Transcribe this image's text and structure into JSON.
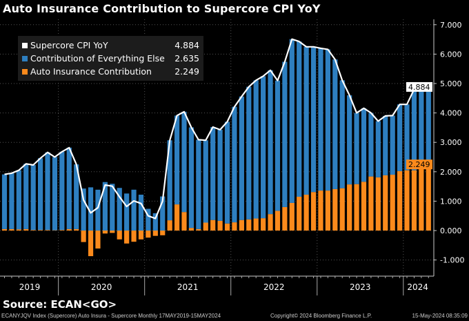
{
  "title": "Auto Insurance Contribution to Supercore CPI YoY",
  "legend": [
    {
      "name": "Supercore CPI YoY",
      "value": "4.884",
      "color": "#ffffff"
    },
    {
      "name": "Contribution of Everything Else",
      "value": "2.635",
      "color": "#2e7fc0"
    },
    {
      "name": "Auto Insurance Contribution",
      "value": "2.249",
      "color": "#fb8a1c"
    }
  ],
  "source": "Source: ECAN<GO>",
  "footer": {
    "left": "ECANYJQV Index (Supercore) Auto Insura - Supercore  Monthly 17MAY2019-15MAY2024",
    "center": "Copyright© 2024 Bloomberg Finance L.P.",
    "right": "15-May-2024 08:35:09"
  },
  "chart_data": {
    "type": "bar",
    "stacked": true,
    "title": "Auto Insurance Contribution to Supercore CPI YoY",
    "x_start": "2019-05",
    "x_end": "2024-04",
    "frequency": "monthly",
    "year_labels": [
      "2019",
      "2020",
      "2021",
      "2022",
      "2023",
      "2024"
    ],
    "ylim": [
      -1.5,
      7.2
    ],
    "y_ticks": [
      "7.000",
      "6.000",
      "5.000",
      "4.000",
      "3.000",
      "2.000",
      "1.000",
      "0.000",
      "-1.000"
    ],
    "axis_side": "right",
    "grid": true,
    "legend_position": "top-left",
    "last_value_labels": [
      {
        "value": "4.884",
        "bg": "#ffffff",
        "fg": "#000000"
      },
      {
        "value": "2.249",
        "bg": "#fb8a1c",
        "fg": "#000000"
      }
    ],
    "series": [
      {
        "name": "Supercore CPI YoY",
        "type": "line",
        "color": "#ffffff",
        "values": [
          1.91,
          1.95,
          2.05,
          2.27,
          2.23,
          2.46,
          2.66,
          2.5,
          2.68,
          2.82,
          2.25,
          1.04,
          0.6,
          0.78,
          1.55,
          1.51,
          1.15,
          0.82,
          1.01,
          0.92,
          0.5,
          0.41,
          1.0,
          3.07,
          3.91,
          4.04,
          3.51,
          3.09,
          3.07,
          3.52,
          3.43,
          3.7,
          4.21,
          4.56,
          4.89,
          5.11,
          5.25,
          5.45,
          5.1,
          5.74,
          6.51,
          6.43,
          6.25,
          6.25,
          6.2,
          6.16,
          5.82,
          5.11,
          4.6,
          4.0,
          4.16,
          4.0,
          3.72,
          3.9,
          3.91,
          4.29,
          4.29,
          4.8,
          4.82,
          4.884
        ]
      },
      {
        "name": "Auto Insurance Contribution",
        "type": "bar",
        "color": "#fb8a1c",
        "values": [
          0.05,
          0.05,
          0.04,
          0.05,
          0.02,
          0.02,
          0.02,
          0.01,
          0.02,
          0.05,
          0.05,
          -0.39,
          -0.87,
          -0.61,
          -0.1,
          -0.08,
          -0.3,
          -0.44,
          -0.38,
          -0.3,
          -0.24,
          -0.18,
          -0.16,
          0.35,
          0.89,
          0.63,
          0.09,
          0.05,
          0.27,
          0.36,
          0.33,
          0.24,
          0.28,
          0.36,
          0.38,
          0.41,
          0.42,
          0.56,
          0.67,
          0.8,
          0.94,
          1.15,
          1.22,
          1.31,
          1.36,
          1.36,
          1.41,
          1.44,
          1.57,
          1.58,
          1.66,
          1.84,
          1.81,
          1.88,
          1.9,
          2.02,
          2.05,
          2.05,
          2.21,
          2.249
        ]
      }
    ],
    "derived_series": {
      "name": "Contribution of Everything Else",
      "color": "#2e7fc0",
      "rule": "Supercore CPI YoY minus Auto Insurance Contribution",
      "last_value": 2.635
    }
  }
}
